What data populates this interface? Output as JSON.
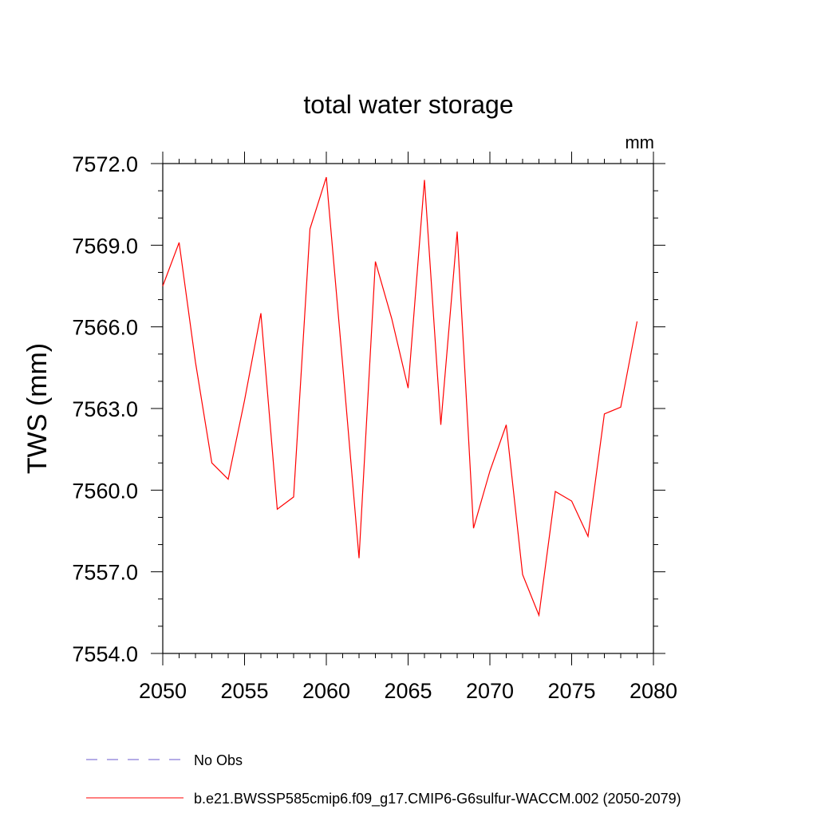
{
  "chart_data": {
    "type": "line",
    "title": "total water storage",
    "units_label": "mm",
    "ylabel": "TWS  (mm)",
    "xlabel": "",
    "xlim": [
      2050,
      2080
    ],
    "ylim": [
      7554.0,
      7572.0
    ],
    "x_ticks": [
      "2050",
      "2055",
      "2060",
      "2065",
      "2070",
      "2075",
      "2080"
    ],
    "y_ticks": [
      "7554.0",
      "7557.0",
      "7560.0",
      "7563.0",
      "7566.0",
      "7569.0",
      "7572.0"
    ],
    "grid": false,
    "legend_position": "bottom",
    "series": [
      {
        "name": "b.e21.BWSSP585cmip6.f09_g17.CMIP6-G6sulfur-WACCM.002 (2050-2079)",
        "color": "#ff0000",
        "style": "solid",
        "x": [
          2050,
          2051,
          2052,
          2053,
          2054,
          2055,
          2056,
          2057,
          2058,
          2059,
          2060,
          2061,
          2062,
          2063,
          2064,
          2065,
          2066,
          2067,
          2068,
          2069,
          2070,
          2071,
          2072,
          2073,
          2074,
          2075,
          2076,
          2077,
          2078,
          2079
        ],
        "values": [
          7567.5,
          7569.1,
          7564.7,
          7561.0,
          7560.4,
          7563.3,
          7566.5,
          7559.3,
          7559.75,
          7569.6,
          7571.5,
          7564.6,
          7557.5,
          7568.4,
          7566.3,
          7563.75,
          7571.4,
          7562.4,
          7569.5,
          7558.6,
          7560.7,
          7562.4,
          7556.9,
          7555.4,
          7559.95,
          7559.6,
          7558.3,
          7562.8,
          7563.05,
          7566.2
        ]
      }
    ],
    "legend": [
      {
        "label": "No Obs",
        "color": "#6a5acd",
        "style": "dashed"
      },
      {
        "label": "b.e21.BWSSP585cmip6.f09_g17.CMIP6-G6sulfur-WACCM.002 (2050-2079)",
        "color": "#ff0000",
        "style": "solid"
      }
    ]
  }
}
